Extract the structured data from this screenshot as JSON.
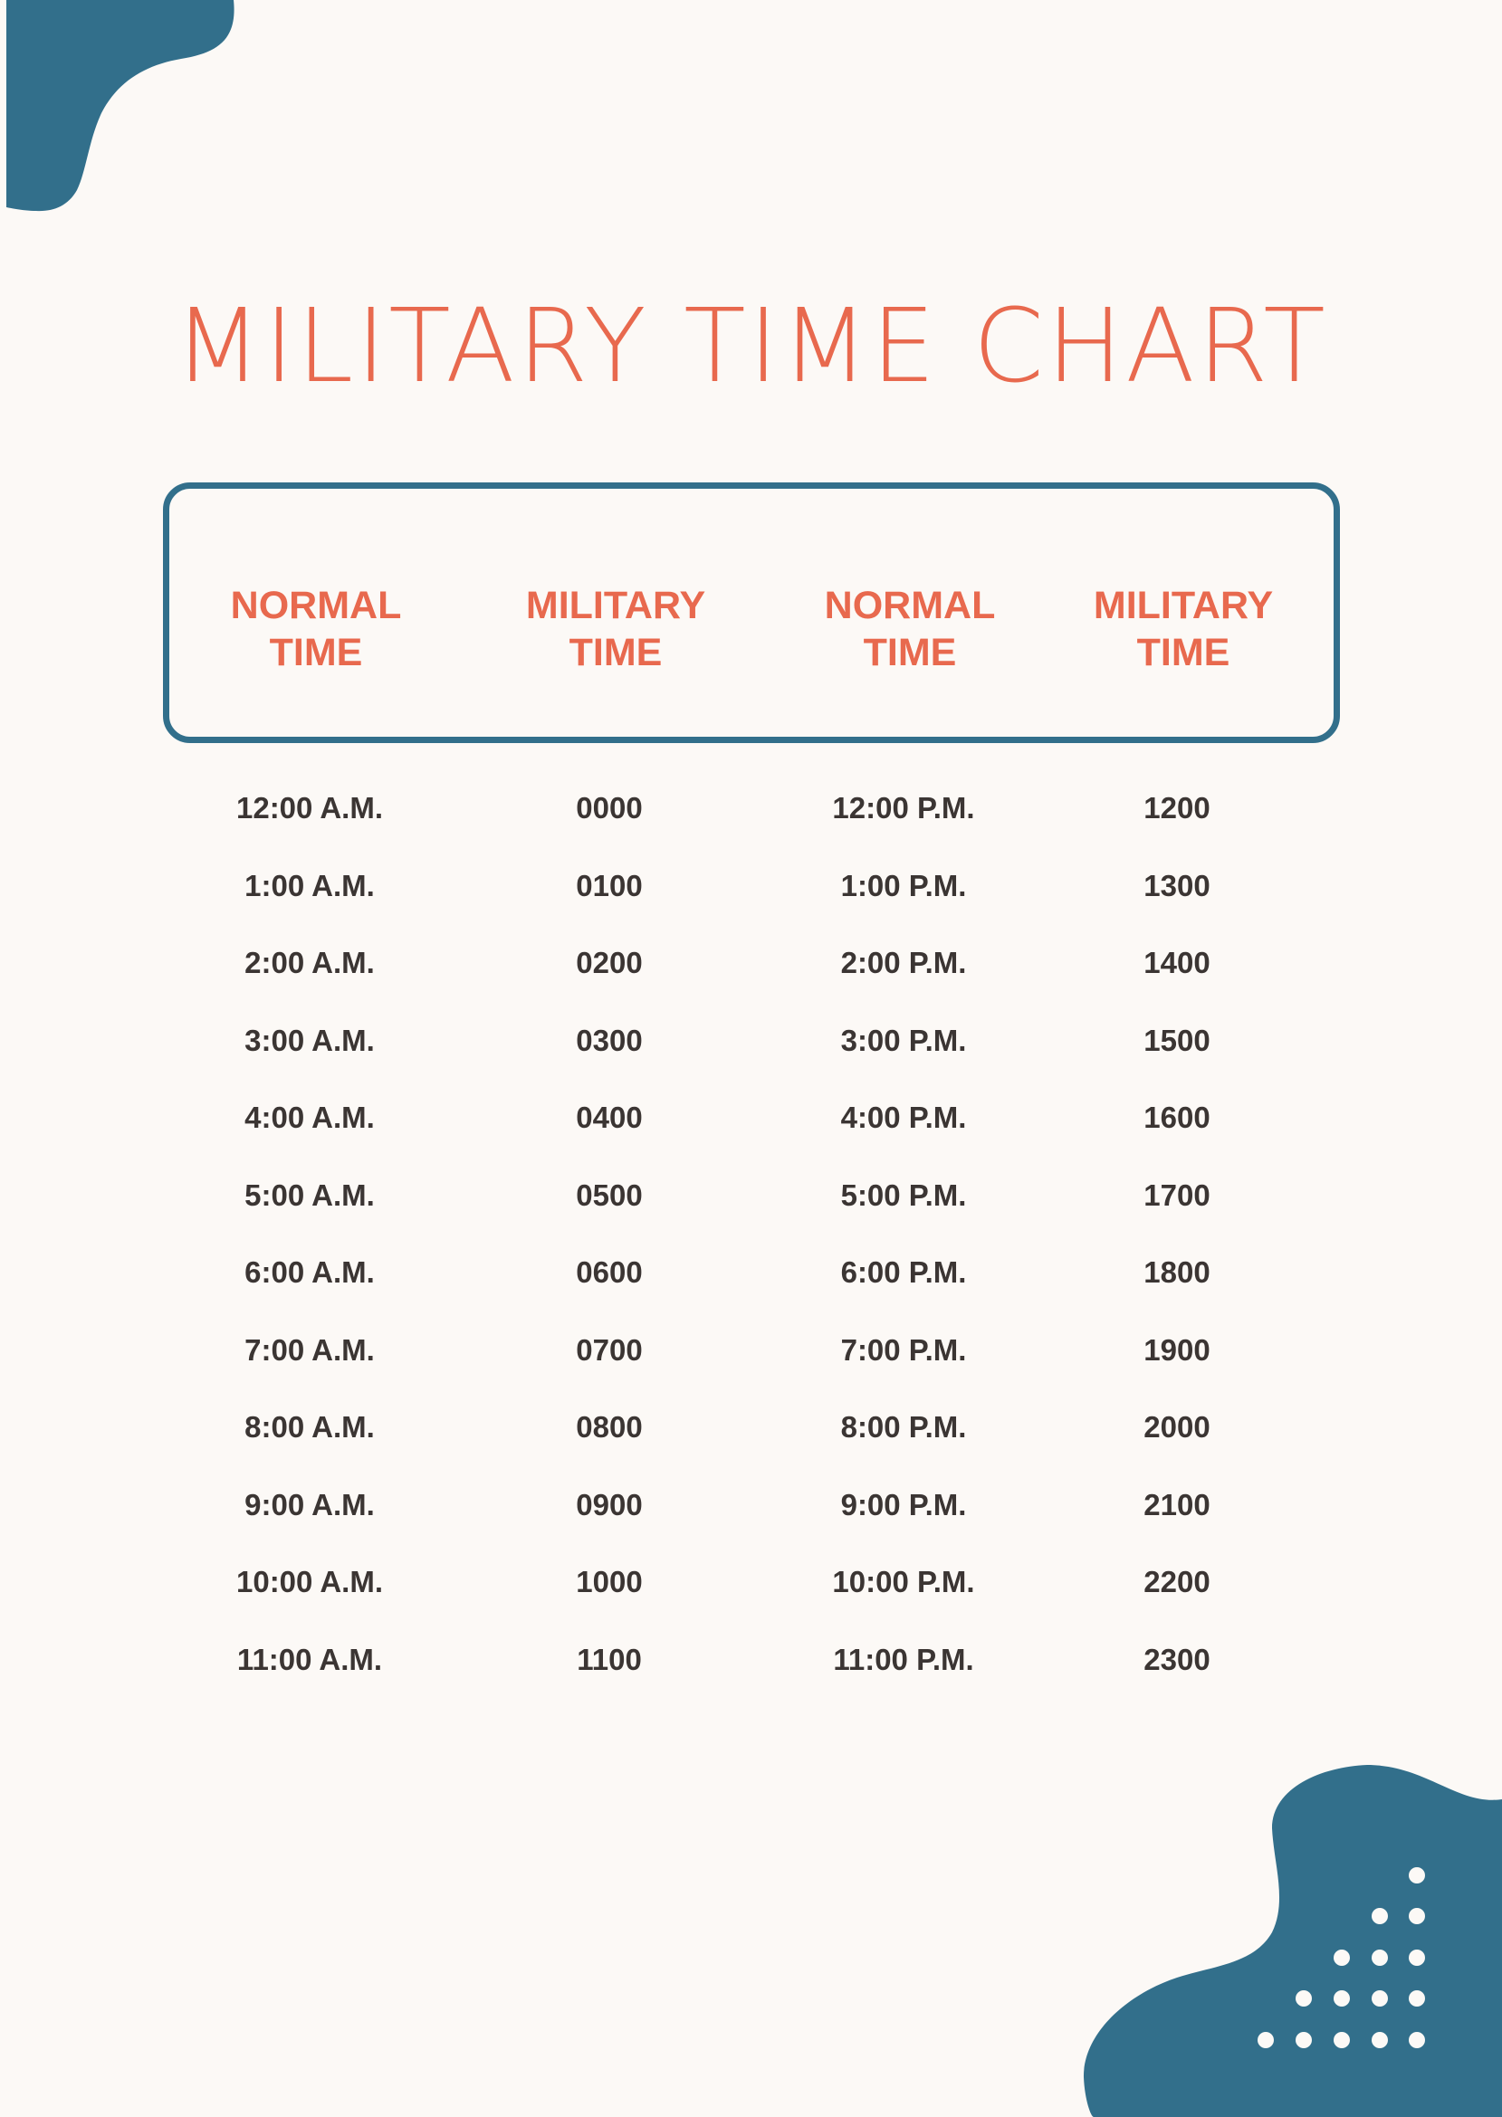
{
  "title": "MILITARY TIME CHART",
  "headers": [
    {
      "line1": "NORMAL",
      "line2": "TIME"
    },
    {
      "line1": "MILITARY",
      "line2": "TIME"
    },
    {
      "line1": "NORMAL",
      "line2": "TIME"
    },
    {
      "line1": "MILITARY",
      "line2": "TIME"
    }
  ],
  "rows": [
    [
      "12:00 A.M.",
      "0000",
      "12:00 P.M.",
      "1200"
    ],
    [
      "1:00 A.M.",
      "0100",
      "1:00 P.M.",
      "1300"
    ],
    [
      "2:00 A.M.",
      "0200",
      "2:00 P.M.",
      "1400"
    ],
    [
      "3:00 A.M.",
      "0300",
      "3:00 P.M.",
      "1500"
    ],
    [
      "4:00 A.M.",
      "0400",
      "4:00 P.M.",
      "1600"
    ],
    [
      "5:00 A.M.",
      "0500",
      "5:00 P.M.",
      "1700"
    ],
    [
      "6:00 A.M.",
      "0600",
      "6:00 P.M.",
      "1800"
    ],
    [
      "7:00 A.M.",
      "0700",
      "7:00 P.M.",
      "1900"
    ],
    [
      "8:00 A.M.",
      "0800",
      "8:00 P.M.",
      "2000"
    ],
    [
      "9:00 A.M.",
      "0900",
      "9:00 P.M.",
      "2100"
    ],
    [
      "10:00 A.M.",
      "1000",
      "10:00 P.M.",
      "2200"
    ],
    [
      "11:00 A.M.",
      "1100",
      "11:00 P.M.",
      "2300"
    ]
  ],
  "colors": {
    "accent": "#e8694e",
    "blue": "#326f8b",
    "text": "#3b3533",
    "background": "#fcf9f6"
  }
}
